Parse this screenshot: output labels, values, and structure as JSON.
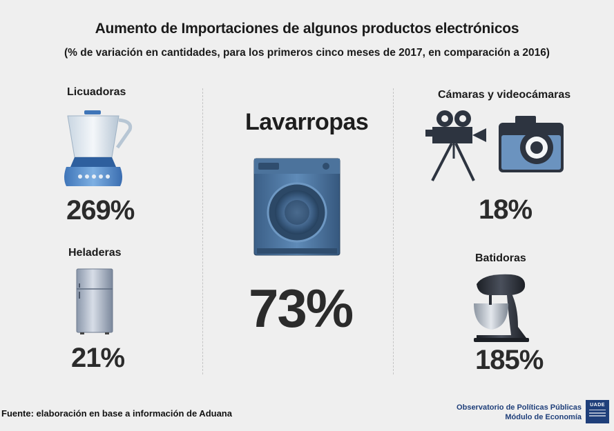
{
  "header": {
    "title": "Aumento de Importaciones de algunos productos electrónicos",
    "subtitle": "(% de variación en cantidades, para los primeros cinco meses de 2017, en comparación a 2016)"
  },
  "products": {
    "licuadoras": {
      "label": "Licuadoras",
      "value": "269%",
      "icon": "blender-icon"
    },
    "heladeras": {
      "label": "Heladeras",
      "value": "21%",
      "icon": "refrigerator-icon"
    },
    "lavarropas": {
      "label": "Lavarropas",
      "value": "73%",
      "icon": "washing-machine-icon"
    },
    "camaras": {
      "label": "Cámaras y videocámaras",
      "value": "18%",
      "icons": [
        "video-camera-icon",
        "photo-camera-icon"
      ]
    },
    "batidoras": {
      "label": "Batidoras",
      "value": "185%",
      "icon": "stand-mixer-icon"
    }
  },
  "footer": {
    "source": "Fuente: elaboración en base a información de Aduana",
    "observatorio_line1": "Observatorio de Políticas Públicas",
    "observatorio_line2": "Módulo de Economía",
    "logo_text": "UADE"
  },
  "colors": {
    "background": "#efefef",
    "icon_blue": "#5b8ec7",
    "icon_dark": "#2d3440",
    "brand": "#1f3f7a"
  }
}
